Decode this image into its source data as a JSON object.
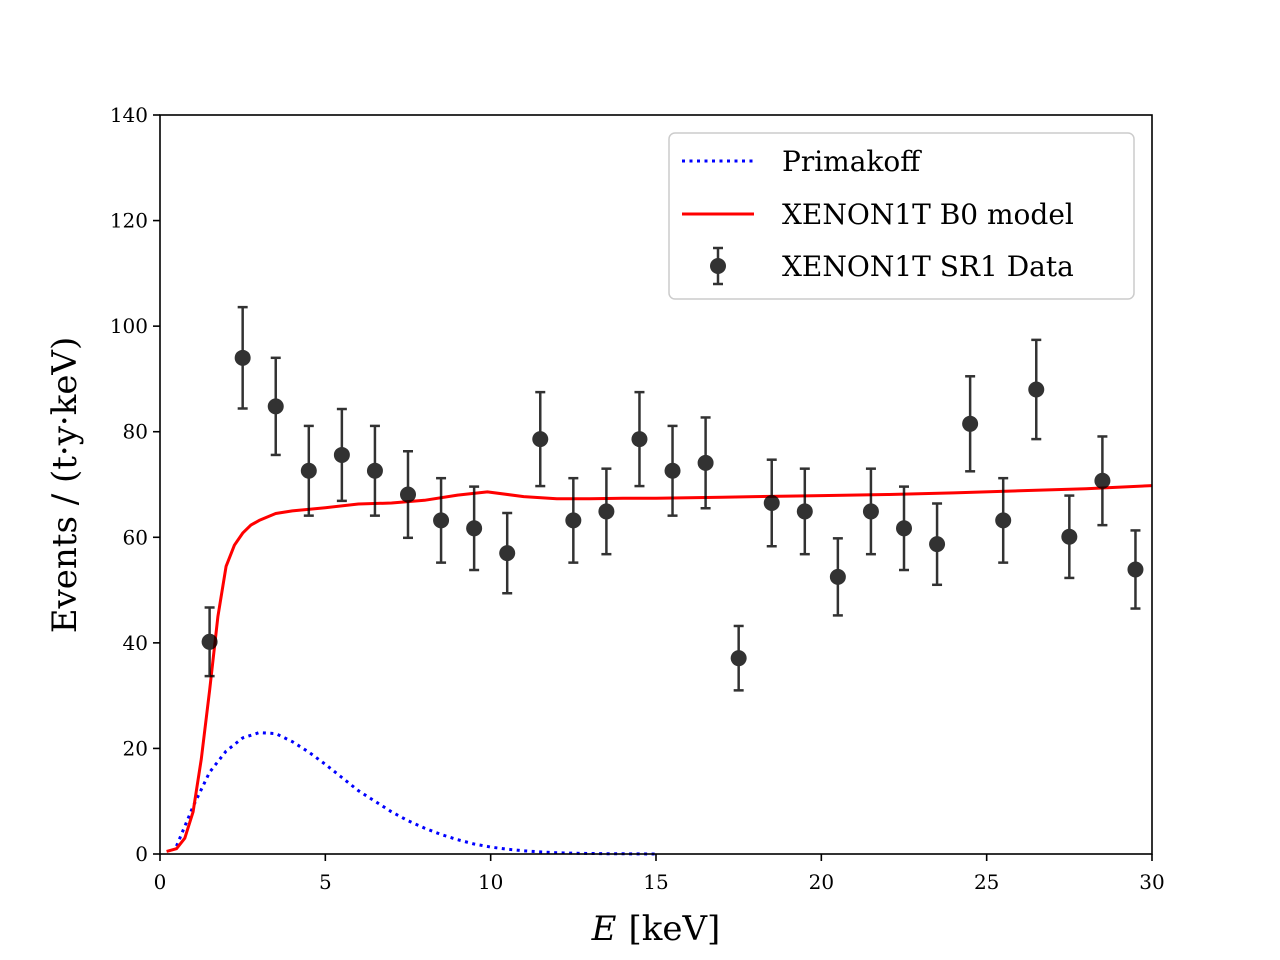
{
  "chart_data": {
    "type": "scatter",
    "xlabel_var": "E",
    "xlabel_unit": "[keV]",
    "ylabel": "Events / (t·y·keV)",
    "xlim": [
      0,
      30
    ],
    "ylim": [
      0,
      140
    ],
    "xticks": [
      "0",
      "5",
      "10",
      "15",
      "20",
      "25",
      "30"
    ],
    "yticks": [
      "0",
      "20",
      "40",
      "60",
      "80",
      "100",
      "120",
      "140"
    ],
    "grid": false,
    "legend_position": "top-right",
    "series": [
      {
        "name": "Primakoff",
        "kind": "line",
        "style": "dotted",
        "color": "#0000ff",
        "x": [
          0.5,
          1,
          1.5,
          2,
          2.5,
          3,
          3.5,
          4,
          4.5,
          5,
          5.5,
          6,
          6.5,
          7,
          7.5,
          8,
          8.5,
          9,
          9.5,
          10,
          10.5,
          11,
          11.5,
          12,
          12.5,
          13,
          13.5,
          14,
          14.5,
          15
        ],
        "y": [
          1.5,
          9,
          15.5,
          19.5,
          22,
          23,
          22.8,
          21.3,
          19.3,
          17,
          14.5,
          12,
          10,
          8,
          6.3,
          4.9,
          3.7,
          2.7,
          1.9,
          1.3,
          0.9,
          0.6,
          0.4,
          0.25,
          0.15,
          0.1,
          0.06,
          0.03,
          0.01,
          0
        ]
      },
      {
        "name": "XENON1T B0 model",
        "kind": "line",
        "style": "solid",
        "color": "#ff0000",
        "x": [
          0.2,
          0.5,
          0.75,
          1,
          1.25,
          1.5,
          1.75,
          2,
          2.25,
          2.5,
          2.75,
          3,
          3.5,
          4,
          5,
          6,
          7,
          8,
          9,
          9.9,
          11,
          12,
          13,
          14,
          15,
          16,
          17,
          18,
          19,
          20,
          22,
          24,
          26,
          28,
          30
        ],
        "y": [
          0.5,
          1,
          3,
          8,
          18,
          31,
          45,
          54.5,
          58.5,
          60.8,
          62.3,
          63.2,
          64.5,
          65,
          65.6,
          66.3,
          66.5,
          67,
          68,
          68.6,
          67.7,
          67.3,
          67.3,
          67.4,
          67.4,
          67.5,
          67.6,
          67.7,
          67.8,
          67.9,
          68.1,
          68.4,
          68.8,
          69.2,
          69.8
        ]
      },
      {
        "name": "XENON1T SR1 Data",
        "kind": "errorbar",
        "color": "#000000",
        "x": [
          1.5,
          2.5,
          3.5,
          4.5,
          5.5,
          6.5,
          7.5,
          8.5,
          9.5,
          10.5,
          11.5,
          12.5,
          13.5,
          14.5,
          15.5,
          16.5,
          17.5,
          18.5,
          19.5,
          20.5,
          21.5,
          22.5,
          23.5,
          24.5,
          25.5,
          26.5,
          27.5,
          28.5,
          29.5
        ],
        "y": [
          40.2,
          94,
          84.8,
          72.6,
          75.6,
          72.6,
          68.1,
          63.2,
          61.7,
          57,
          78.6,
          63.2,
          64.9,
          78.6,
          72.6,
          74.1,
          37.1,
          66.5,
          64.9,
          52.5,
          64.9,
          61.7,
          58.7,
          81.5,
          63.2,
          88,
          60.1,
          70.7,
          53.9
        ],
        "yerr": [
          6.5,
          9.6,
          9.2,
          8.5,
          8.7,
          8.5,
          8.2,
          8.0,
          7.9,
          7.6,
          8.9,
          8.0,
          8.1,
          8.9,
          8.5,
          8.6,
          6.1,
          8.2,
          8.1,
          7.3,
          8.1,
          7.9,
          7.7,
          9.0,
          8.0,
          9.4,
          7.8,
          8.4,
          7.4
        ]
      }
    ]
  }
}
